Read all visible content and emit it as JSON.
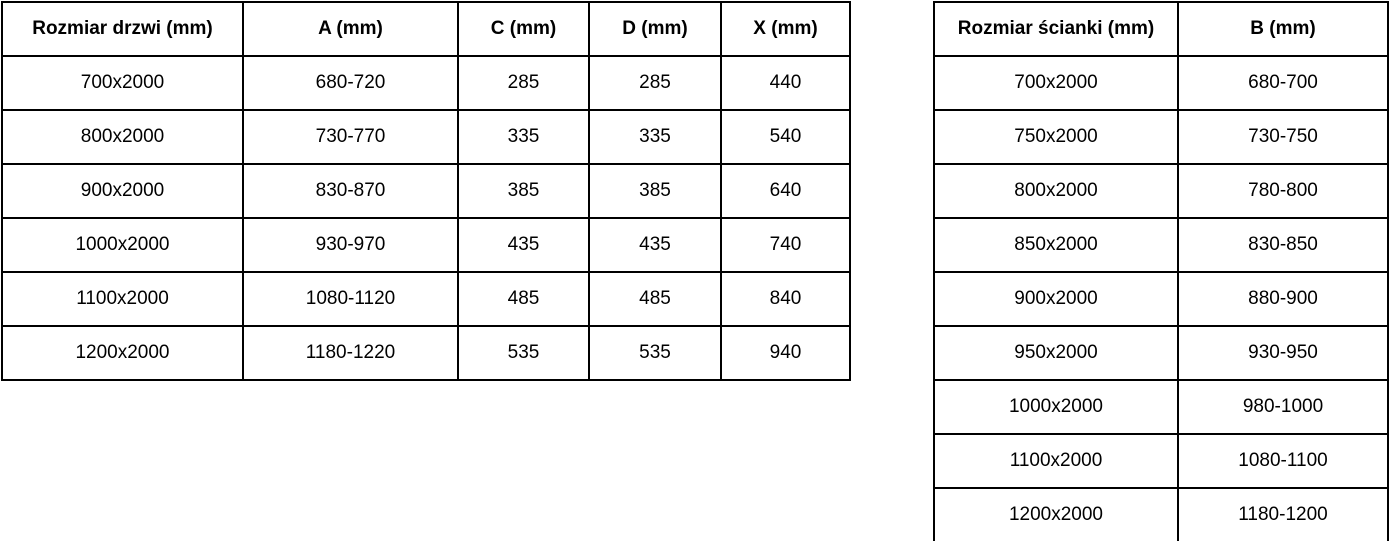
{
  "colors": {
    "background": "#ffffff",
    "border": "#000000",
    "text": "#000000"
  },
  "doors_table": {
    "headers": [
      "Rozmiar drzwi (mm)",
      "A (mm)",
      "C (mm)",
      "D (mm)",
      "X (mm)"
    ],
    "rows": [
      [
        "700x2000",
        "680-720",
        "285",
        "285",
        "440"
      ],
      [
        "800x2000",
        "730-770",
        "335",
        "335",
        "540"
      ],
      [
        "900x2000",
        "830-870",
        "385",
        "385",
        "640"
      ],
      [
        "1000x2000",
        "930-970",
        "435",
        "435",
        "740"
      ],
      [
        "1100x2000",
        "1080-1120",
        "485",
        "485",
        "840"
      ],
      [
        "1200x2000",
        "1180-1220",
        "535",
        "535",
        "940"
      ]
    ]
  },
  "walls_table": {
    "headers": [
      "Rozmiar ścianki (mm)",
      "B (mm)"
    ],
    "rows": [
      [
        "700x2000",
        "680-700"
      ],
      [
        "750x2000",
        "730-750"
      ],
      [
        "800x2000",
        "780-800"
      ],
      [
        "850x2000",
        "830-850"
      ],
      [
        "900x2000",
        "880-900"
      ],
      [
        "950x2000",
        "930-950"
      ],
      [
        "1000x2000",
        "980-1000"
      ],
      [
        "1100x2000",
        "1080-1100"
      ],
      [
        "1200x2000",
        "1180-1200"
      ]
    ]
  }
}
